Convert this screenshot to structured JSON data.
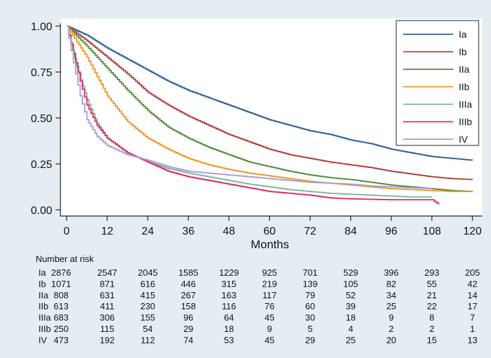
{
  "chart_data": {
    "type": "line",
    "step": true,
    "xlabel": "Months",
    "ylabel": "",
    "xlim": [
      0,
      120
    ],
    "ylim": [
      0,
      1
    ],
    "xticks": [
      0,
      12,
      24,
      36,
      48,
      60,
      72,
      84,
      96,
      108,
      120
    ],
    "xtick_labels": [
      "0",
      "12",
      "24",
      "36",
      "48",
      "60",
      "72",
      "84",
      "96",
      "108",
      "120"
    ],
    "yticks": [
      0,
      0.25,
      0.5,
      0.75,
      1
    ],
    "ytick_labels": [
      "0.00",
      "0.25",
      "0.50",
      "0.75",
      "1.00"
    ],
    "grid": false,
    "legend_position": "top-right",
    "series": [
      {
        "name": "Ia",
        "color": "#2a5f95",
        "points": [
          [
            0,
            1.0
          ],
          [
            6,
            0.95
          ],
          [
            12,
            0.88
          ],
          [
            18,
            0.82
          ],
          [
            24,
            0.76
          ],
          [
            30,
            0.7
          ],
          [
            36,
            0.65
          ],
          [
            42,
            0.61
          ],
          [
            48,
            0.57
          ],
          [
            54,
            0.53
          ],
          [
            60,
            0.49
          ],
          [
            66,
            0.46
          ],
          [
            72,
            0.43
          ],
          [
            78,
            0.41
          ],
          [
            84,
            0.38
          ],
          [
            90,
            0.36
          ],
          [
            96,
            0.33
          ],
          [
            102,
            0.31
          ],
          [
            108,
            0.29
          ],
          [
            114,
            0.28
          ],
          [
            120,
            0.27
          ]
        ]
      },
      {
        "name": "Ib",
        "color": "#b23a3a",
        "points": [
          [
            0,
            1.0
          ],
          [
            6,
            0.92
          ],
          [
            12,
            0.83
          ],
          [
            18,
            0.74
          ],
          [
            24,
            0.64
          ],
          [
            30,
            0.57
          ],
          [
            36,
            0.51
          ],
          [
            42,
            0.46
          ],
          [
            48,
            0.41
          ],
          [
            54,
            0.37
          ],
          [
            60,
            0.33
          ],
          [
            66,
            0.3
          ],
          [
            72,
            0.28
          ],
          [
            78,
            0.26
          ],
          [
            84,
            0.245
          ],
          [
            90,
            0.23
          ],
          [
            96,
            0.21
          ],
          [
            102,
            0.195
          ],
          [
            108,
            0.18
          ],
          [
            114,
            0.17
          ],
          [
            120,
            0.165
          ]
        ]
      },
      {
        "name": "IIa",
        "color": "#4f8a3b",
        "points": [
          [
            0,
            1.0
          ],
          [
            6,
            0.89
          ],
          [
            12,
            0.77
          ],
          [
            18,
            0.65
          ],
          [
            24,
            0.54
          ],
          [
            30,
            0.45
          ],
          [
            36,
            0.39
          ],
          [
            42,
            0.34
          ],
          [
            48,
            0.3
          ],
          [
            54,
            0.26
          ],
          [
            60,
            0.235
          ],
          [
            66,
            0.21
          ],
          [
            72,
            0.19
          ],
          [
            78,
            0.175
          ],
          [
            84,
            0.165
          ],
          [
            90,
            0.15
          ],
          [
            96,
            0.135
          ],
          [
            102,
            0.125
          ],
          [
            108,
            0.115
          ],
          [
            114,
            0.105
          ],
          [
            120,
            0.1
          ]
        ]
      },
      {
        "name": "IIb",
        "color": "#f2951f",
        "points": [
          [
            0,
            1.0
          ],
          [
            6,
            0.83
          ],
          [
            12,
            0.62
          ],
          [
            18,
            0.48
          ],
          [
            24,
            0.39
          ],
          [
            30,
            0.33
          ],
          [
            36,
            0.28
          ],
          [
            42,
            0.245
          ],
          [
            48,
            0.22
          ],
          [
            54,
            0.2
          ],
          [
            60,
            0.185
          ],
          [
            66,
            0.17
          ],
          [
            72,
            0.155
          ],
          [
            78,
            0.145
          ],
          [
            84,
            0.135
          ],
          [
            90,
            0.125
          ],
          [
            96,
            0.115
          ],
          [
            102,
            0.11
          ],
          [
            108,
            0.105
          ],
          [
            114,
            0.1
          ],
          [
            120,
            0.1
          ]
        ]
      },
      {
        "name": "IIIa",
        "color": "#7fb59a",
        "points": [
          [
            0,
            1.0
          ],
          [
            3,
            0.78
          ],
          [
            6,
            0.6
          ],
          [
            9,
            0.47
          ],
          [
            12,
            0.39
          ],
          [
            18,
            0.31
          ],
          [
            24,
            0.26
          ],
          [
            30,
            0.225
          ],
          [
            36,
            0.2
          ],
          [
            42,
            0.18
          ],
          [
            48,
            0.16
          ],
          [
            54,
            0.14
          ],
          [
            60,
            0.125
          ],
          [
            66,
            0.11
          ],
          [
            72,
            0.1
          ],
          [
            78,
            0.09
          ],
          [
            84,
            0.085
          ],
          [
            90,
            0.08
          ],
          [
            96,
            0.075
          ],
          [
            102,
            0.07
          ],
          [
            108,
            0.07
          ]
        ]
      },
      {
        "name": "IIIb",
        "color": "#e0255f",
        "points": [
          [
            0,
            1.0
          ],
          [
            2,
            0.85
          ],
          [
            4,
            0.7
          ],
          [
            6,
            0.57
          ],
          [
            9,
            0.46
          ],
          [
            12,
            0.39
          ],
          [
            18,
            0.31
          ],
          [
            24,
            0.26
          ],
          [
            30,
            0.21
          ],
          [
            36,
            0.18
          ],
          [
            42,
            0.16
          ],
          [
            48,
            0.14
          ],
          [
            54,
            0.12
          ],
          [
            60,
            0.1
          ],
          [
            66,
            0.09
          ],
          [
            72,
            0.08
          ],
          [
            78,
            0.065
          ],
          [
            84,
            0.06
          ],
          [
            96,
            0.055
          ],
          [
            108,
            0.055
          ],
          [
            110,
            0.03
          ]
        ]
      },
      {
        "name": "IV",
        "color": "#a99ad9",
        "points": [
          [
            0,
            1.0
          ],
          [
            2,
            0.8
          ],
          [
            4,
            0.62
          ],
          [
            6,
            0.49
          ],
          [
            9,
            0.4
          ],
          [
            12,
            0.35
          ],
          [
            18,
            0.3
          ],
          [
            24,
            0.27
          ],
          [
            30,
            0.235
          ],
          [
            36,
            0.21
          ],
          [
            42,
            0.2
          ],
          [
            48,
            0.19
          ],
          [
            54,
            0.18
          ],
          [
            60,
            0.17
          ],
          [
            66,
            0.16
          ],
          [
            72,
            0.15
          ],
          [
            78,
            0.145
          ],
          [
            84,
            0.14
          ],
          [
            90,
            0.13
          ],
          [
            96,
            0.125
          ],
          [
            102,
            0.12
          ],
          [
            108,
            0.115
          ]
        ]
      }
    ],
    "risk_table": {
      "title": "Number at risk",
      "times": [
        0,
        12,
        24,
        36,
        48,
        60,
        72,
        84,
        96,
        108,
        120
      ],
      "rows": [
        {
          "label": "Ia",
          "values": [
            "2876",
            "2547",
            "2045",
            "1585",
            "1229",
            "925",
            "701",
            "529",
            "396",
            "293",
            "205"
          ]
        },
        {
          "label": "Ib",
          "values": [
            "1071",
            "871",
            "616",
            "446",
            "315",
            "219",
            "139",
            "105",
            "82",
            "55",
            "42"
          ]
        },
        {
          "label": "IIa",
          "values": [
            "808",
            "631",
            "415",
            "267",
            "163",
            "117",
            "79",
            "52",
            "34",
            "21",
            "14"
          ]
        },
        {
          "label": "IIb",
          "values": [
            "613",
            "411",
            "230",
            "158",
            "116",
            "76",
            "60",
            "39",
            "25",
            "22",
            "17"
          ]
        },
        {
          "label": "IIIa",
          "values": [
            "683",
            "306",
            "155",
            "96",
            "64",
            "45",
            "30",
            "18",
            "9",
            "8",
            "7"
          ]
        },
        {
          "label": "IIIb",
          "values": [
            "250",
            "115",
            "54",
            "29",
            "18",
            "9",
            "5",
            "4",
            "2",
            "2",
            "1"
          ]
        },
        {
          "label": "IV",
          "values": [
            "473",
            "192",
            "112",
            "74",
            "53",
            "45",
            "29",
            "25",
            "20",
            "15",
            "13"
          ]
        }
      ]
    }
  }
}
